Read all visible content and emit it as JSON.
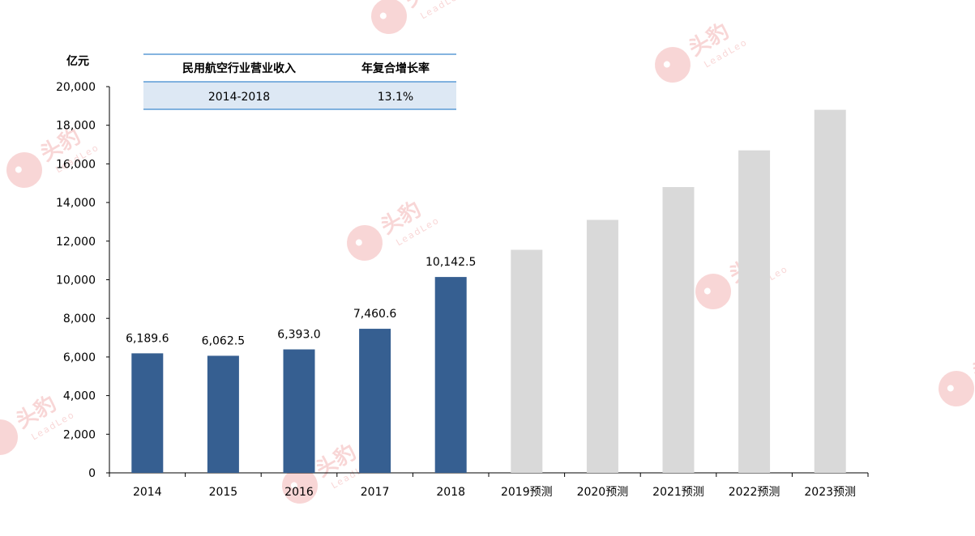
{
  "chart_data": {
    "type": "bar",
    "ylabel": "亿元",
    "ylim": [
      0,
      20000
    ],
    "yticks": [
      "0",
      "2,000",
      "4,000",
      "6,000",
      "8,000",
      "10,000",
      "12,000",
      "14,000",
      "16,000",
      "18,000",
      "20,000"
    ],
    "ytick_values": [
      0,
      2000,
      4000,
      6000,
      8000,
      10000,
      12000,
      14000,
      16000,
      18000,
      20000
    ],
    "categories": [
      "2014",
      "2015",
      "2016",
      "2017",
      "2018",
      "2019预测",
      "2020预测",
      "2021预测",
      "2022预测",
      "2023预测"
    ],
    "values": [
      6189.6,
      6062.5,
      6393.0,
      7460.6,
      10142.5,
      11550,
      13100,
      14800,
      16700,
      18800
    ],
    "data_labels": [
      "6,189.6",
      "6,062.5",
      "6,393.0",
      "7,460.6",
      "10,142.5",
      "",
      "",
      "",
      "",
      ""
    ],
    "actual_color": "#365f91",
    "forecast_color": "#d9d9d9",
    "forecast_from_index": 5,
    "grid": false
  },
  "cagr_table": {
    "headers": [
      "民用航空行业营业收入",
      "年复合增长率"
    ],
    "row": [
      "2014-2018",
      "13.1%"
    ],
    "border_color": "#5b9bd5",
    "row_fill": "#dde8f4"
  },
  "watermark": {
    "text": "头豹",
    "subtext": "LeadLeo",
    "color": "#f4b6b6"
  }
}
